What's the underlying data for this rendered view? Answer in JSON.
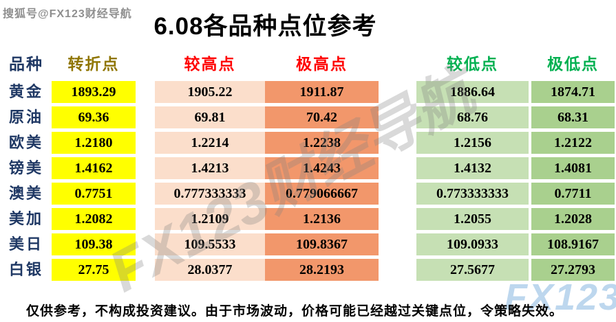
{
  "watermarks": {
    "top_left": "搜狐号@FX123财经导航",
    "diagonal": "FX123财经导航",
    "corner": "FX123"
  },
  "title": "6.08各品种点位参考",
  "table": {
    "headers": {
      "product": "品种",
      "pivot": "转折点",
      "higher": "较高点",
      "highest": "极高点",
      "lower": "较低点",
      "lowest": "极低点"
    },
    "rows": [
      {
        "name": "黄金",
        "pivot": "1893.29",
        "higher": "1905.22",
        "highest": "1911.87",
        "lower": "1886.64",
        "lowest": "1874.71"
      },
      {
        "name": "原油",
        "pivot": "69.36",
        "higher": "69.81",
        "highest": "70.42",
        "lower": "68.76",
        "lowest": "68.31"
      },
      {
        "name": "欧美",
        "pivot": "1.2180",
        "higher": "1.2214",
        "highest": "1.2238",
        "lower": "1.2156",
        "lowest": "1.2122"
      },
      {
        "name": "镑美",
        "pivot": "1.4162",
        "higher": "1.4213",
        "highest": "1.4243",
        "lower": "1.4132",
        "lowest": "1.4081"
      },
      {
        "name": "澳美",
        "pivot": "0.7751",
        "higher": "0.777333333",
        "highest": "0.779066667",
        "lower": "0.773333333",
        "lowest": "0.7711"
      },
      {
        "name": "美加",
        "pivot": "1.2082",
        "higher": "1.2109",
        "highest": "1.2136",
        "lower": "1.2055",
        "lowest": "1.2028"
      },
      {
        "name": "美日",
        "pivot": "109.38",
        "higher": "109.5533",
        "highest": "109.8367",
        "lower": "109.0933",
        "lowest": "108.9167"
      },
      {
        "name": "白银",
        "pivot": "27.75",
        "higher": "28.0377",
        "highest": "28.2193",
        "lower": "27.5677",
        "lowest": "27.2793"
      }
    ]
  },
  "disclaimer": "仅供参考，不构成投资建议。由于市场波动，价格可能已经越过关键点位，令策略失效。",
  "colors": {
    "pivot_cell": "#FFFF00",
    "higher_cell": "#FBDECB",
    "highest_cell": "#F2976B",
    "lower_cell": "#C6E0B4",
    "lowest_cell": "#A9D08E",
    "header_product": "#1F3864",
    "header_pivot": "#8F7500",
    "header_high_text": "#FF0000",
    "header_low_text": "#00B050",
    "row_label_text": "#1F3864",
    "corner_logo": "#BDD7EE"
  }
}
